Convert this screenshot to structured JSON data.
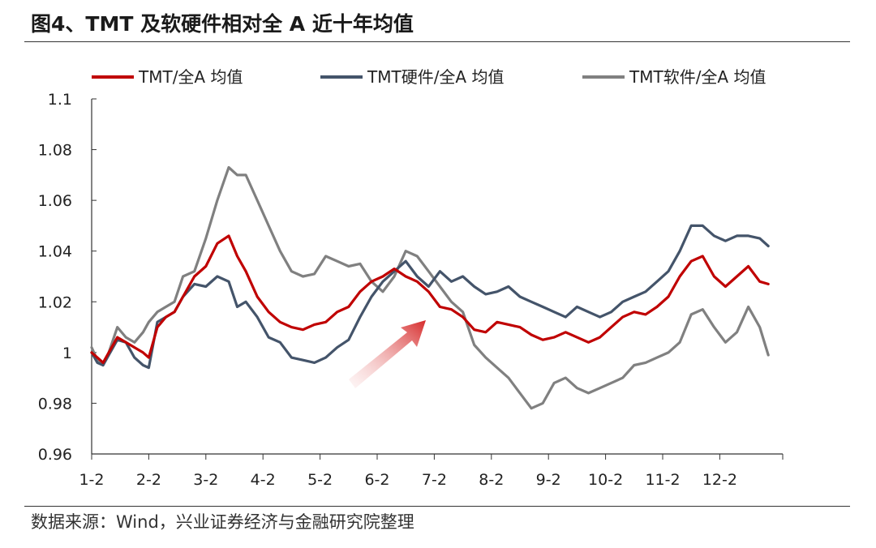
{
  "title": "图4、TMT 及软硬件相对全 A 近十年均值",
  "source": "数据来源：Wind，兴业证券经济与金融研究院整理",
  "colors": {
    "tmt": "#c00000",
    "hardware": "#44546a",
    "software": "#808080",
    "arrow": "#d62b2b",
    "axis": "#333333"
  },
  "chart_data": {
    "type": "line",
    "xlabel": "",
    "ylabel": "",
    "ylim": [
      0.96,
      1.1
    ],
    "yticks": [
      "1.1",
      "1.08",
      "1.06",
      "1.04",
      "1.02",
      "1",
      "0.98",
      "0.96"
    ],
    "yvalues": [
      1.1,
      1.08,
      1.06,
      1.04,
      1.02,
      1.0,
      0.98,
      0.96
    ],
    "xticks": [
      "1-2",
      "2-2",
      "3-2",
      "4-2",
      "5-2",
      "6-2",
      "7-2",
      "8-2",
      "9-2",
      "10-2",
      "11-2",
      "12-2"
    ],
    "grid": false,
    "legend_position": "top",
    "annotation": "red arrow pointing up-right",
    "series": [
      {
        "name": "TMT/全A 均值",
        "color": "#c00000",
        "x": [
          0,
          0.1,
          0.2,
          0.3,
          0.45,
          0.6,
          0.75,
          0.9,
          1.0,
          1.15,
          1.3,
          1.45,
          1.6,
          1.8,
          2.0,
          2.2,
          2.4,
          2.55,
          2.7,
          2.9,
          3.1,
          3.3,
          3.5,
          3.7,
          3.9,
          4.1,
          4.3,
          4.5,
          4.7,
          4.9,
          5.1,
          5.3,
          5.5,
          5.7,
          5.9,
          6.1,
          6.3,
          6.5,
          6.7,
          6.9,
          7.1,
          7.3,
          7.5,
          7.7,
          7.9,
          8.1,
          8.3,
          8.5,
          8.7,
          8.9,
          9.1,
          9.3,
          9.5,
          9.7,
          9.9,
          10.1,
          10.3,
          10.5,
          10.7,
          10.9,
          11.1,
          11.3,
          11.5,
          11.7,
          11.85
        ],
        "values": [
          1.0,
          0.998,
          0.996,
          1.0,
          1.006,
          1.004,
          1.002,
          1.0,
          0.998,
          1.01,
          1.014,
          1.016,
          1.022,
          1.03,
          1.034,
          1.043,
          1.046,
          1.038,
          1.032,
          1.022,
          1.016,
          1.012,
          1.01,
          1.009,
          1.011,
          1.012,
          1.016,
          1.018,
          1.024,
          1.028,
          1.03,
          1.033,
          1.03,
          1.028,
          1.024,
          1.018,
          1.017,
          1.014,
          1.009,
          1.008,
          1.012,
          1.011,
          1.01,
          1.007,
          1.005,
          1.006,
          1.008,
          1.006,
          1.004,
          1.006,
          1.01,
          1.014,
          1.016,
          1.015,
          1.018,
          1.022,
          1.03,
          1.036,
          1.038,
          1.03,
          1.026,
          1.03,
          1.034,
          1.028,
          1.027
        ]
      },
      {
        "name": "TMT硬件/全A 均值",
        "color": "#44546a",
        "x": [
          0,
          0.1,
          0.2,
          0.3,
          0.45,
          0.6,
          0.75,
          0.9,
          1.0,
          1.15,
          1.3,
          1.45,
          1.6,
          1.8,
          2.0,
          2.2,
          2.4,
          2.55,
          2.7,
          2.9,
          3.1,
          3.3,
          3.5,
          3.7,
          3.9,
          4.1,
          4.3,
          4.5,
          4.7,
          4.9,
          5.1,
          5.3,
          5.5,
          5.7,
          5.9,
          6.1,
          6.3,
          6.5,
          6.7,
          6.9,
          7.1,
          7.3,
          7.5,
          7.7,
          7.9,
          8.1,
          8.3,
          8.5,
          8.7,
          8.9,
          9.1,
          9.3,
          9.5,
          9.7,
          9.9,
          10.1,
          10.3,
          10.5,
          10.7,
          10.9,
          11.1,
          11.3,
          11.5,
          11.7,
          11.85
        ],
        "values": [
          1.0,
          0.996,
          0.995,
          0.999,
          1.005,
          1.004,
          0.998,
          0.995,
          0.994,
          1.012,
          1.014,
          1.016,
          1.022,
          1.027,
          1.026,
          1.03,
          1.028,
          1.018,
          1.02,
          1.014,
          1.006,
          1.004,
          0.998,
          0.997,
          0.996,
          0.998,
          1.002,
          1.005,
          1.014,
          1.022,
          1.028,
          1.032,
          1.036,
          1.03,
          1.026,
          1.032,
          1.028,
          1.03,
          1.026,
          1.023,
          1.024,
          1.026,
          1.022,
          1.02,
          1.018,
          1.016,
          1.014,
          1.018,
          1.016,
          1.014,
          1.016,
          1.02,
          1.022,
          1.024,
          1.028,
          1.032,
          1.04,
          1.05,
          1.05,
          1.046,
          1.044,
          1.046,
          1.046,
          1.045,
          1.042
        ]
      },
      {
        "name": "TMT软件/全A 均值",
        "color": "#808080",
        "x": [
          0,
          0.1,
          0.2,
          0.3,
          0.45,
          0.6,
          0.75,
          0.9,
          1.0,
          1.15,
          1.3,
          1.45,
          1.6,
          1.8,
          2.0,
          2.2,
          2.4,
          2.55,
          2.7,
          2.9,
          3.1,
          3.3,
          3.5,
          3.7,
          3.9,
          4.1,
          4.3,
          4.5,
          4.7,
          4.9,
          5.1,
          5.3,
          5.5,
          5.7,
          5.9,
          6.1,
          6.3,
          6.5,
          6.7,
          6.9,
          7.1,
          7.3,
          7.5,
          7.7,
          7.9,
          8.1,
          8.3,
          8.5,
          8.7,
          8.9,
          9.1,
          9.3,
          9.5,
          9.7,
          9.9,
          10.1,
          10.3,
          10.5,
          10.7,
          10.9,
          11.1,
          11.3,
          11.5,
          11.7,
          11.85
        ],
        "values": [
          1.002,
          0.997,
          0.995,
          1.0,
          1.01,
          1.006,
          1.004,
          1.008,
          1.012,
          1.016,
          1.018,
          1.02,
          1.03,
          1.032,
          1.045,
          1.06,
          1.073,
          1.07,
          1.07,
          1.06,
          1.05,
          1.04,
          1.032,
          1.03,
          1.031,
          1.038,
          1.036,
          1.034,
          1.035,
          1.028,
          1.024,
          1.03,
          1.04,
          1.038,
          1.032,
          1.026,
          1.02,
          1.016,
          1.003,
          0.998,
          0.994,
          0.99,
          0.984,
          0.978,
          0.98,
          0.988,
          0.99,
          0.986,
          0.984,
          0.986,
          0.988,
          0.99,
          0.995,
          0.996,
          0.998,
          1.0,
          1.004,
          1.015,
          1.017,
          1.01,
          1.004,
          1.008,
          1.018,
          1.01,
          0.999
        ]
      }
    ]
  }
}
